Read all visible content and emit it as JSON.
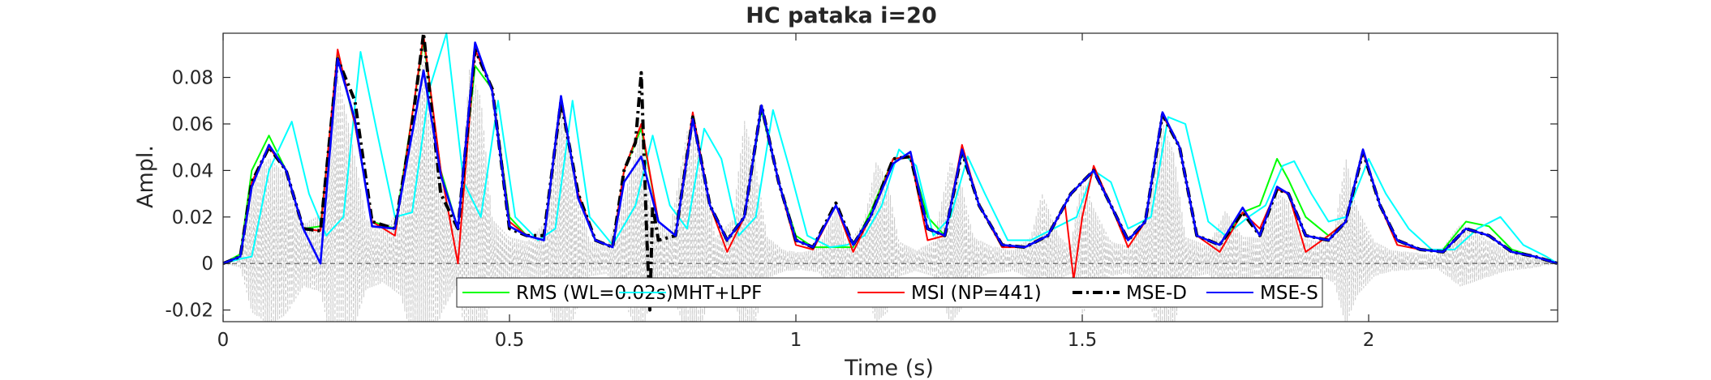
{
  "chart_data": {
    "type": "line",
    "title": "HC pataka i=20",
    "xlabel": "Time (s)",
    "ylabel": "Ampl.",
    "xlim": [
      0,
      2.33
    ],
    "ylim": [
      -0.025,
      0.099
    ],
    "xticks": [
      0,
      0.5,
      1,
      1.5,
      2
    ],
    "xtick_labels": [
      "0",
      "0.5",
      "1",
      "1.5",
      "2"
    ],
    "yticks": [
      -0.02,
      0,
      0.02,
      0.04,
      0.06,
      0.08
    ],
    "ytick_labels": [
      "-0.02",
      "0",
      "0.02",
      "0.04",
      "0.06",
      "0.08"
    ],
    "grid": false,
    "legend_position": "bottom-center, inside, horizontal",
    "baseline": {
      "y": 0,
      "style": "dashed",
      "color": "#555555"
    },
    "background_signal": {
      "name": "speech waveform",
      "color": "#c8c8c8",
      "style": "dashed",
      "x": [
        0,
        0.03,
        0.05,
        0.08,
        0.11,
        0.14,
        0.17,
        0.2,
        0.22,
        0.25,
        0.28,
        0.31,
        0.35,
        0.38,
        0.41,
        0.43,
        0.45,
        0.47,
        0.5,
        0.53,
        0.56,
        0.59,
        0.61,
        0.64,
        0.67,
        0.7,
        0.73,
        0.75,
        0.78,
        0.81,
        0.83,
        0.86,
        0.89,
        0.91,
        0.93,
        0.95,
        0.98,
        1.01,
        1.04,
        1.07,
        1.09,
        1.12,
        1.14,
        1.16,
        1.18,
        1.21,
        1.24,
        1.27,
        1.29,
        1.31,
        1.34,
        1.38,
        1.41,
        1.43,
        1.46,
        1.48,
        1.5,
        1.52,
        1.55,
        1.58,
        1.61,
        1.64,
        1.66,
        1.68,
        1.72,
        1.75,
        1.78,
        1.81,
        1.84,
        1.86,
        1.88,
        1.91,
        1.94,
        1.96,
        1.98,
        2.01,
        2.04,
        2.08,
        2.12,
        2.16,
        2.2,
        2.24,
        2.28,
        2.33
      ],
      "y": [
        0,
        0.003,
        0.038,
        0.048,
        0.04,
        0.018,
        0.022,
        0.086,
        0.062,
        0.02,
        0.015,
        0.025,
        0.094,
        0.04,
        0.015,
        0.088,
        0.075,
        0.02,
        0.012,
        0.01,
        0.018,
        0.07,
        0.045,
        0.01,
        0.008,
        0.03,
        0.06,
        0.02,
        0.015,
        0.06,
        0.055,
        0.012,
        0.02,
        0.065,
        0.045,
        0.012,
        0.006,
        0.005,
        0.007,
        0.025,
        0.008,
        0.02,
        0.046,
        0.038,
        0.01,
        0.006,
        0.01,
        0.047,
        0.035,
        0.012,
        0.008,
        0.006,
        0.012,
        0.032,
        0.012,
        0.008,
        0.04,
        0.025,
        0.01,
        0.008,
        0.02,
        0.064,
        0.05,
        0.012,
        0.008,
        0.024,
        0.012,
        0.012,
        0.032,
        0.028,
        0.012,
        0.01,
        0.015,
        0.048,
        0.025,
        0.01,
        0.006,
        0.005,
        0.004,
        0.018,
        0.012,
        0.006,
        0.004,
        0.0
      ]
    },
    "series": [
      {
        "name": "RMS (WL=0.02s)",
        "color": "#00ff00",
        "style": "solid",
        "x": [
          0,
          0.03,
          0.05,
          0.08,
          0.11,
          0.14,
          0.17,
          0.2,
          0.23,
          0.26,
          0.3,
          0.35,
          0.38,
          0.41,
          0.44,
          0.47,
          0.5,
          0.53,
          0.56,
          0.59,
          0.62,
          0.65,
          0.68,
          0.7,
          0.73,
          0.76,
          0.79,
          0.82,
          0.85,
          0.88,
          0.91,
          0.94,
          0.97,
          1.0,
          1.03,
          1.07,
          1.1,
          1.13,
          1.17,
          1.2,
          1.23,
          1.26,
          1.29,
          1.32,
          1.36,
          1.4,
          1.44,
          1.48,
          1.52,
          1.55,
          1.58,
          1.61,
          1.64,
          1.67,
          1.7,
          1.74,
          1.78,
          1.81,
          1.84,
          1.86,
          1.89,
          1.93,
          1.96,
          1.99,
          2.02,
          2.05,
          2.09,
          2.13,
          2.17,
          2.21,
          2.25,
          2.29,
          2.33
        ],
        "y": [
          0,
          0.004,
          0.04,
          0.055,
          0.04,
          0.015,
          0.016,
          0.09,
          0.06,
          0.018,
          0.015,
          0.096,
          0.04,
          0.015,
          0.085,
          0.075,
          0.02,
          0.012,
          0.01,
          0.07,
          0.03,
          0.01,
          0.007,
          0.04,
          0.058,
          0.018,
          0.012,
          0.063,
          0.025,
          0.01,
          0.02,
          0.066,
          0.035,
          0.012,
          0.007,
          0.007,
          0.007,
          0.022,
          0.045,
          0.046,
          0.02,
          0.012,
          0.048,
          0.025,
          0.008,
          0.007,
          0.012,
          0.03,
          0.04,
          0.025,
          0.01,
          0.018,
          0.064,
          0.05,
          0.012,
          0.008,
          0.022,
          0.025,
          0.045,
          0.036,
          0.02,
          0.012,
          0.018,
          0.048,
          0.025,
          0.01,
          0.006,
          0.006,
          0.018,
          0.016,
          0.006,
          0.003,
          0.0
        ]
      },
      {
        "name": "MHT+LPF",
        "color": "#00ffff",
        "style": "solid",
        "x": [
          0,
          0.03,
          0.05,
          0.08,
          0.12,
          0.15,
          0.18,
          0.21,
          0.24,
          0.27,
          0.3,
          0.33,
          0.36,
          0.39,
          0.42,
          0.45,
          0.48,
          0.51,
          0.55,
          0.58,
          0.61,
          0.64,
          0.68,
          0.72,
          0.75,
          0.78,
          0.81,
          0.84,
          0.87,
          0.9,
          0.93,
          0.96,
          0.99,
          1.02,
          1.06,
          1.09,
          1.12,
          1.15,
          1.18,
          1.21,
          1.24,
          1.27,
          1.3,
          1.33,
          1.37,
          1.41,
          1.45,
          1.49,
          1.52,
          1.55,
          1.58,
          1.62,
          1.65,
          1.68,
          1.72,
          1.75,
          1.79,
          1.82,
          1.85,
          1.87,
          1.9,
          1.93,
          1.96,
          2.0,
          2.03,
          2.07,
          2.11,
          2.15,
          2.19,
          2.23,
          2.27,
          2.31,
          2.33
        ],
        "y": [
          0,
          0.002,
          0.003,
          0.04,
          0.061,
          0.03,
          0.012,
          0.02,
          0.091,
          0.055,
          0.02,
          0.022,
          0.075,
          0.1,
          0.035,
          0.02,
          0.07,
          0.02,
          0.01,
          0.015,
          0.07,
          0.02,
          0.008,
          0.025,
          0.055,
          0.025,
          0.015,
          0.058,
          0.045,
          0.012,
          0.02,
          0.066,
          0.04,
          0.012,
          0.007,
          0.008,
          0.012,
          0.025,
          0.049,
          0.042,
          0.012,
          0.02,
          0.046,
          0.03,
          0.01,
          0.01,
          0.015,
          0.02,
          0.04,
          0.035,
          0.015,
          0.02,
          0.063,
          0.06,
          0.018,
          0.012,
          0.02,
          0.025,
          0.042,
          0.044,
          0.03,
          0.018,
          0.02,
          0.045,
          0.03,
          0.015,
          0.006,
          0.006,
          0.015,
          0.02,
          0.008,
          0.003,
          0.0
        ]
      },
      {
        "name": "MSI (NP=441)",
        "color": "#ff0000",
        "style": "solid",
        "x": [
          0,
          0.03,
          0.05,
          0.08,
          0.11,
          0.14,
          0.17,
          0.2,
          0.23,
          0.26,
          0.3,
          0.35,
          0.38,
          0.41,
          0.44,
          0.47,
          0.5,
          0.53,
          0.56,
          0.59,
          0.62,
          0.65,
          0.68,
          0.7,
          0.73,
          0.76,
          0.79,
          0.82,
          0.85,
          0.88,
          0.91,
          0.94,
          0.97,
          1.0,
          1.03,
          1.07,
          1.1,
          1.13,
          1.17,
          1.2,
          1.23,
          1.26,
          1.29,
          1.32,
          1.36,
          1.4,
          1.44,
          1.47,
          1.485,
          1.5,
          1.52,
          1.55,
          1.58,
          1.61,
          1.64,
          1.67,
          1.7,
          1.74,
          1.78,
          1.81,
          1.84,
          1.86,
          1.89,
          1.93,
          1.96,
          1.99,
          2.02,
          2.05,
          2.09,
          2.13,
          2.17,
          2.21,
          2.25,
          2.29,
          2.33
        ],
        "y": [
          0,
          0.003,
          0.035,
          0.05,
          0.04,
          0.015,
          0.014,
          0.092,
          0.06,
          0.018,
          0.012,
          0.098,
          0.04,
          0.0,
          0.092,
          0.075,
          0.018,
          0.012,
          0.01,
          0.07,
          0.03,
          0.01,
          0.007,
          0.04,
          0.06,
          0.018,
          0.012,
          0.065,
          0.025,
          0.005,
          0.02,
          0.068,
          0.035,
          0.008,
          0.006,
          0.025,
          0.005,
          0.02,
          0.045,
          0.046,
          0.01,
          0.012,
          0.051,
          0.025,
          0.007,
          0.007,
          0.012,
          0.025,
          -0.007,
          0.02,
          0.042,
          0.025,
          0.007,
          0.018,
          0.064,
          0.05,
          0.012,
          0.005,
          0.022,
          0.015,
          0.032,
          0.03,
          0.005,
          0.012,
          0.018,
          0.048,
          0.025,
          0.008,
          0.006,
          0.005,
          0.015,
          0.012,
          0.005,
          0.003,
          0.0
        ]
      },
      {
        "name": "MSE-D",
        "color": "#000000",
        "style": "dash-dot",
        "x": [
          0,
          0.03,
          0.05,
          0.08,
          0.11,
          0.14,
          0.17,
          0.2,
          0.23,
          0.26,
          0.3,
          0.33,
          0.35,
          0.36,
          0.38,
          0.41,
          0.44,
          0.47,
          0.5,
          0.53,
          0.56,
          0.59,
          0.62,
          0.65,
          0.68,
          0.7,
          0.72,
          0.73,
          0.74,
          0.745,
          0.75,
          0.76,
          0.79,
          0.82,
          0.85,
          0.88,
          0.91,
          0.94,
          0.97,
          1.0,
          1.03,
          1.07,
          1.1,
          1.13,
          1.17,
          1.2,
          1.23,
          1.26,
          1.29,
          1.32,
          1.36,
          1.4,
          1.44,
          1.48,
          1.52,
          1.55,
          1.58,
          1.61,
          1.64,
          1.67,
          1.7,
          1.74,
          1.78,
          1.81,
          1.84,
          1.86,
          1.89,
          1.93,
          1.96,
          1.99,
          2.02,
          2.05,
          2.09,
          2.13,
          2.17,
          2.21,
          2.25,
          2.29,
          2.33
        ],
        "y": [
          0,
          0.003,
          0.035,
          0.05,
          0.04,
          0.015,
          0.014,
          0.088,
          0.07,
          0.018,
          0.015,
          0.06,
          0.1,
          0.075,
          0.03,
          0.015,
          0.092,
          0.075,
          0.015,
          0.012,
          0.012,
          0.07,
          0.03,
          0.01,
          0.007,
          0.04,
          0.052,
          0.082,
          0.01,
          -0.02,
          0.025,
          0.01,
          0.012,
          0.063,
          0.025,
          0.01,
          0.02,
          0.068,
          0.035,
          0.01,
          0.007,
          0.026,
          0.008,
          0.02,
          0.045,
          0.046,
          0.015,
          0.012,
          0.048,
          0.025,
          0.008,
          0.007,
          0.012,
          0.03,
          0.04,
          0.025,
          0.01,
          0.018,
          0.064,
          0.05,
          0.012,
          0.008,
          0.022,
          0.012,
          0.032,
          0.03,
          0.012,
          0.01,
          0.018,
          0.048,
          0.025,
          0.01,
          0.006,
          0.005,
          0.015,
          0.012,
          0.005,
          0.003,
          0.0
        ]
      },
      {
        "name": "MSE-S",
        "color": "#0000ff",
        "style": "solid",
        "x": [
          0,
          0.03,
          0.05,
          0.08,
          0.11,
          0.14,
          0.17,
          0.2,
          0.23,
          0.26,
          0.3,
          0.35,
          0.38,
          0.41,
          0.44,
          0.47,
          0.5,
          0.53,
          0.56,
          0.59,
          0.62,
          0.65,
          0.68,
          0.7,
          0.73,
          0.76,
          0.79,
          0.82,
          0.85,
          0.88,
          0.91,
          0.94,
          0.97,
          1.0,
          1.03,
          1.07,
          1.1,
          1.13,
          1.17,
          1.2,
          1.23,
          1.26,
          1.29,
          1.32,
          1.36,
          1.4,
          1.44,
          1.48,
          1.52,
          1.55,
          1.58,
          1.61,
          1.64,
          1.67,
          1.7,
          1.74,
          1.78,
          1.81,
          1.84,
          1.86,
          1.89,
          1.93,
          1.96,
          1.99,
          2.02,
          2.05,
          2.09,
          2.13,
          2.17,
          2.21,
          2.25,
          2.29,
          2.33
        ],
        "y": [
          0,
          0.003,
          0.033,
          0.051,
          0.04,
          0.015,
          0.0,
          0.088,
          0.062,
          0.016,
          0.015,
          0.083,
          0.038,
          0.015,
          0.095,
          0.074,
          0.016,
          0.012,
          0.01,
          0.072,
          0.028,
          0.01,
          0.007,
          0.035,
          0.046,
          0.018,
          0.012,
          0.062,
          0.025,
          0.01,
          0.02,
          0.068,
          0.035,
          0.01,
          0.007,
          0.025,
          0.008,
          0.02,
          0.043,
          0.048,
          0.015,
          0.012,
          0.049,
          0.025,
          0.008,
          0.007,
          0.012,
          0.03,
          0.04,
          0.025,
          0.01,
          0.018,
          0.065,
          0.05,
          0.012,
          0.008,
          0.024,
          0.012,
          0.033,
          0.03,
          0.012,
          0.01,
          0.018,
          0.049,
          0.025,
          0.01,
          0.006,
          0.005,
          0.015,
          0.012,
          0.005,
          0.003,
          0.0
        ]
      }
    ]
  }
}
